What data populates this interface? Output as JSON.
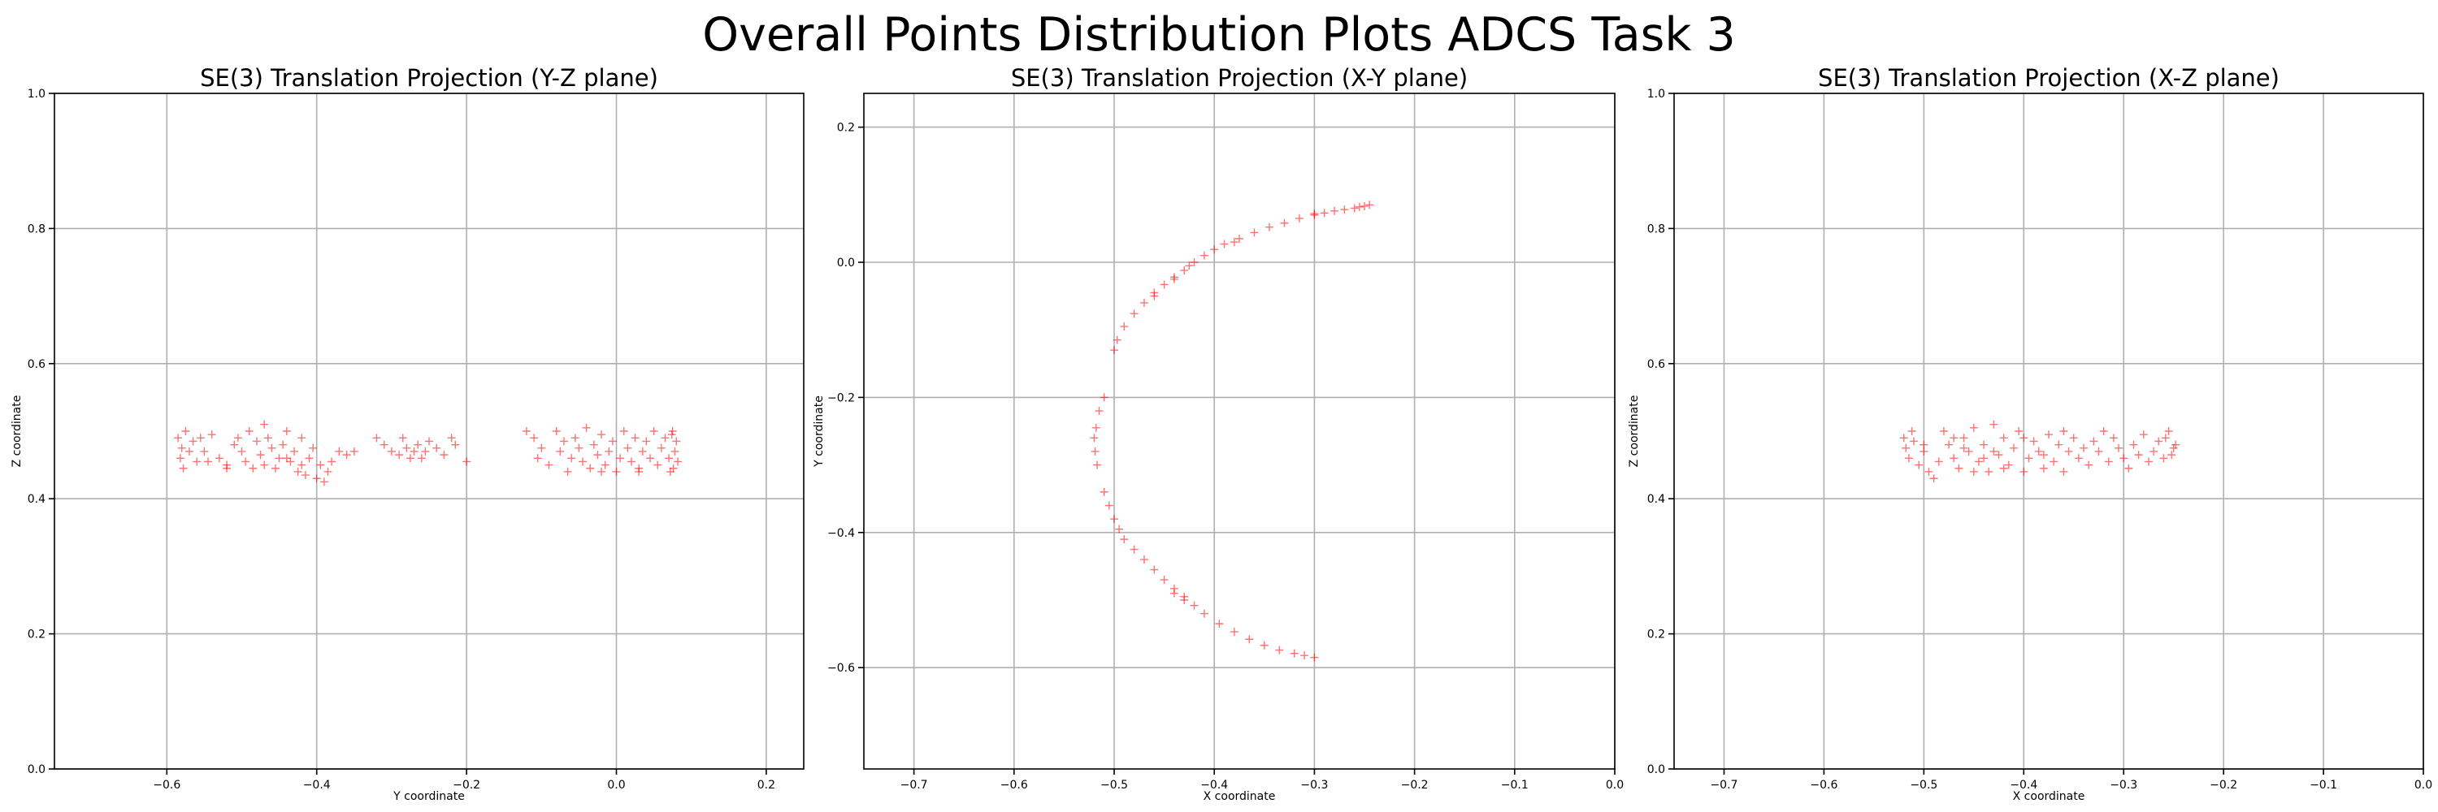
{
  "suptitle": "Overall Points Distribution Plots ADCS Task 3",
  "colors": {
    "marker": "#ff0000",
    "grid": "#b0b0b0"
  },
  "chart_data": [
    {
      "type": "scatter",
      "title": "SE(3) Translation Projection (Y-Z plane)",
      "xlabel": "Y coordinate",
      "ylabel": "Z coordinate",
      "xlim": [
        -0.75,
        0.25
      ],
      "ylim": [
        0.0,
        1.0
      ],
      "xticks": [
        -0.6,
        -0.4,
        -0.2,
        0.0,
        0.2
      ],
      "xtick_labels": [
        "−0.6",
        "−0.4",
        "−0.2",
        "0.0",
        "0.2"
      ],
      "yticks": [
        0.0,
        0.2,
        0.4,
        0.6,
        0.8,
        1.0
      ],
      "ytick_labels": [
        "0.0",
        "0.2",
        "0.4",
        "0.6",
        "0.8",
        "1.0"
      ],
      "grid": true,
      "marker": "+",
      "points": [
        [
          -0.585,
          0.49
        ],
        [
          -0.58,
          0.475
        ],
        [
          -0.582,
          0.46
        ],
        [
          -0.578,
          0.445
        ],
        [
          -0.575,
          0.5
        ],
        [
          -0.57,
          0.47
        ],
        [
          -0.565,
          0.485
        ],
        [
          -0.56,
          0.455
        ],
        [
          -0.555,
          0.49
        ],
        [
          -0.55,
          0.47
        ],
        [
          -0.545,
          0.455
        ],
        [
          -0.54,
          0.495
        ],
        [
          -0.53,
          0.46
        ],
        [
          -0.52,
          0.45
        ],
        [
          -0.51,
          0.48
        ],
        [
          -0.505,
          0.49
        ],
        [
          -0.5,
          0.47
        ],
        [
          -0.495,
          0.455
        ],
        [
          -0.49,
          0.5
        ],
        [
          -0.485,
          0.445
        ],
        [
          -0.48,
          0.485
        ],
        [
          -0.475,
          0.465
        ],
        [
          -0.47,
          0.51
        ],
        [
          -0.465,
          0.49
        ],
        [
          -0.46,
          0.475
        ],
        [
          -0.455,
          0.445
        ],
        [
          -0.45,
          0.46
        ],
        [
          -0.445,
          0.48
        ],
        [
          -0.44,
          0.5
        ],
        [
          -0.435,
          0.455
        ],
        [
          -0.43,
          0.47
        ],
        [
          -0.425,
          0.44
        ],
        [
          -0.42,
          0.49
        ],
        [
          -0.415,
          0.435
        ],
        [
          -0.41,
          0.46
        ],
        [
          -0.405,
          0.475
        ],
        [
          -0.4,
          0.43
        ],
        [
          -0.395,
          0.45
        ],
        [
          -0.39,
          0.425
        ],
        [
          -0.385,
          0.44
        ],
        [
          -0.38,
          0.455
        ],
        [
          -0.37,
          0.47
        ],
        [
          -0.36,
          0.465
        ],
        [
          -0.35,
          0.47
        ],
        [
          -0.32,
          0.49
        ],
        [
          -0.31,
          0.48
        ],
        [
          -0.3,
          0.47
        ],
        [
          -0.29,
          0.465
        ],
        [
          -0.285,
          0.49
        ],
        [
          -0.28,
          0.475
        ],
        [
          -0.275,
          0.46
        ],
        [
          -0.27,
          0.47
        ],
        [
          -0.265,
          0.48
        ],
        [
          -0.26,
          0.46
        ],
        [
          -0.255,
          0.47
        ],
        [
          -0.25,
          0.485
        ],
        [
          -0.24,
          0.475
        ],
        [
          -0.23,
          0.465
        ],
        [
          -0.22,
          0.49
        ],
        [
          -0.215,
          0.48
        ],
        [
          -0.2,
          0.455
        ],
        [
          -0.12,
          0.5
        ],
        [
          -0.11,
          0.49
        ],
        [
          -0.105,
          0.46
        ],
        [
          -0.1,
          0.475
        ],
        [
          -0.09,
          0.45
        ],
        [
          -0.08,
          0.5
        ],
        [
          -0.075,
          0.47
        ],
        [
          -0.07,
          0.485
        ],
        [
          -0.065,
          0.44
        ],
        [
          -0.06,
          0.46
        ],
        [
          -0.055,
          0.49
        ],
        [
          -0.05,
          0.475
        ],
        [
          -0.045,
          0.455
        ],
        [
          -0.04,
          0.505
        ],
        [
          -0.035,
          0.445
        ],
        [
          -0.03,
          0.48
        ],
        [
          -0.025,
          0.465
        ],
        [
          -0.02,
          0.495
        ],
        [
          -0.015,
          0.45
        ],
        [
          -0.01,
          0.47
        ],
        [
          -0.005,
          0.485
        ],
        [
          0.0,
          0.44
        ],
        [
          0.005,
          0.46
        ],
        [
          0.01,
          0.5
        ],
        [
          0.015,
          0.475
        ],
        [
          0.02,
          0.455
        ],
        [
          0.025,
          0.49
        ],
        [
          0.03,
          0.445
        ],
        [
          0.035,
          0.47
        ],
        [
          0.04,
          0.485
        ],
        [
          0.045,
          0.46
        ],
        [
          0.05,
          0.5
        ],
        [
          0.055,
          0.45
        ],
        [
          0.06,
          0.475
        ],
        [
          0.065,
          0.49
        ],
        [
          0.07,
          0.46
        ],
        [
          0.072,
          0.44
        ],
        [
          0.075,
          0.5
        ],
        [
          0.078,
          0.47
        ],
        [
          0.08,
          0.485
        ],
        [
          0.082,
          0.455
        ],
        [
          0.076,
          0.445
        ],
        [
          0.074,
          0.495
        ],
        [
          -0.52,
          0.445
        ],
        [
          -0.47,
          0.45
        ],
        [
          -0.44,
          0.46
        ],
        [
          -0.42,
          0.45
        ],
        [
          -0.02,
          0.44
        ],
        [
          0.03,
          0.44
        ]
      ]
    },
    {
      "type": "scatter",
      "title": "SE(3) Translation Projection (X-Y plane)",
      "xlabel": "X coordinate",
      "ylabel": "Y coordinate",
      "xlim": [
        -0.75,
        0.0
      ],
      "ylim": [
        -0.75,
        0.25
      ],
      "xticks": [
        -0.7,
        -0.6,
        -0.5,
        -0.4,
        -0.3,
        -0.2,
        -0.1,
        0.0
      ],
      "xtick_labels": [
        "−0.7",
        "−0.6",
        "−0.5",
        "−0.4",
        "−0.3",
        "−0.2",
        "−0.1",
        "0.0"
      ],
      "yticks": [
        -0.6,
        -0.4,
        -0.2,
        0.0,
        0.2
      ],
      "ytick_labels": [
        "−0.6",
        "−0.4",
        "−0.2",
        "0.0",
        "0.2"
      ],
      "grid": true,
      "marker": "+",
      "points": [
        [
          -0.245,
          0.085
        ],
        [
          -0.25,
          0.083
        ],
        [
          -0.255,
          0.082
        ],
        [
          -0.26,
          0.08
        ],
        [
          -0.27,
          0.078
        ],
        [
          -0.28,
          0.076
        ],
        [
          -0.29,
          0.073
        ],
        [
          -0.3,
          0.07
        ],
        [
          -0.315,
          0.065
        ],
        [
          -0.33,
          0.058
        ],
        [
          -0.345,
          0.052
        ],
        [
          -0.36,
          0.044
        ],
        [
          -0.375,
          0.035
        ],
        [
          -0.39,
          0.027
        ],
        [
          -0.4,
          0.019
        ],
        [
          -0.41,
          0.01
        ],
        [
          -0.42,
          0.0
        ],
        [
          -0.425,
          -0.005
        ],
        [
          -0.43,
          -0.012
        ],
        [
          -0.44,
          -0.022
        ],
        [
          -0.45,
          -0.033
        ],
        [
          -0.46,
          -0.045
        ],
        [
          -0.47,
          -0.06
        ],
        [
          -0.48,
          -0.076
        ],
        [
          -0.49,
          -0.095
        ],
        [
          -0.497,
          -0.115
        ],
        [
          -0.5,
          -0.13
        ],
        [
          -0.51,
          -0.2
        ],
        [
          -0.515,
          -0.22
        ],
        [
          -0.518,
          -0.245
        ],
        [
          -0.52,
          -0.26
        ],
        [
          -0.519,
          -0.28
        ],
        [
          -0.517,
          -0.3
        ],
        [
          -0.51,
          -0.34
        ],
        [
          -0.505,
          -0.36
        ],
        [
          -0.5,
          -0.38
        ],
        [
          -0.495,
          -0.395
        ],
        [
          -0.49,
          -0.41
        ],
        [
          -0.48,
          -0.425
        ],
        [
          -0.47,
          -0.44
        ],
        [
          -0.46,
          -0.455
        ],
        [
          -0.45,
          -0.47
        ],
        [
          -0.44,
          -0.483
        ],
        [
          -0.43,
          -0.495
        ],
        [
          -0.42,
          -0.508
        ],
        [
          -0.41,
          -0.52
        ],
        [
          -0.395,
          -0.535
        ],
        [
          -0.38,
          -0.547
        ],
        [
          -0.365,
          -0.558
        ],
        [
          -0.35,
          -0.567
        ],
        [
          -0.335,
          -0.574
        ],
        [
          -0.32,
          -0.579
        ],
        [
          -0.31,
          -0.582
        ],
        [
          -0.3,
          -0.585
        ],
        [
          -0.44,
          -0.49
        ],
        [
          -0.43,
          -0.5
        ],
        [
          -0.44,
          -0.025
        ],
        [
          -0.46,
          -0.05
        ],
        [
          -0.38,
          0.03
        ],
        [
          -0.3,
          0.072
        ]
      ]
    },
    {
      "type": "scatter",
      "title": "SE(3) Translation Projection (X-Z plane)",
      "xlabel": "X coordinate",
      "ylabel": "Z coordinate",
      "xlim": [
        -0.75,
        0.0
      ],
      "ylim": [
        0.0,
        1.0
      ],
      "xticks": [
        -0.7,
        -0.6,
        -0.5,
        -0.4,
        -0.3,
        -0.2,
        -0.1,
        0.0
      ],
      "xtick_labels": [
        "−0.7",
        "−0.6",
        "−0.5",
        "−0.4",
        "−0.3",
        "−0.2",
        "−0.1",
        "0.0"
      ],
      "yticks": [
        0.0,
        0.2,
        0.4,
        0.6,
        0.8,
        1.0
      ],
      "ytick_labels": [
        "0.0",
        "0.2",
        "0.4",
        "0.6",
        "0.8",
        "1.0"
      ],
      "grid": true,
      "marker": "+",
      "points": [
        [
          -0.52,
          0.49
        ],
        [
          -0.518,
          0.475
        ],
        [
          -0.515,
          0.46
        ],
        [
          -0.512,
          0.5
        ],
        [
          -0.51,
          0.485
        ],
        [
          -0.505,
          0.45
        ],
        [
          -0.5,
          0.47
        ],
        [
          -0.495,
          0.44
        ],
        [
          -0.49,
          0.43
        ],
        [
          -0.485,
          0.455
        ],
        [
          -0.48,
          0.5
        ],
        [
          -0.475,
          0.48
        ],
        [
          -0.47,
          0.46
        ],
        [
          -0.465,
          0.445
        ],
        [
          -0.46,
          0.49
        ],
        [
          -0.455,
          0.47
        ],
        [
          -0.45,
          0.505
        ],
        [
          -0.445,
          0.455
        ],
        [
          -0.44,
          0.48
        ],
        [
          -0.435,
          0.44
        ],
        [
          -0.43,
          0.51
        ],
        [
          -0.425,
          0.465
        ],
        [
          -0.42,
          0.49
        ],
        [
          -0.415,
          0.45
        ],
        [
          -0.41,
          0.475
        ],
        [
          -0.405,
          0.5
        ],
        [
          -0.4,
          0.44
        ],
        [
          -0.395,
          0.46
        ],
        [
          -0.39,
          0.485
        ],
        [
          -0.385,
          0.47
        ],
        [
          -0.38,
          0.445
        ],
        [
          -0.375,
          0.495
        ],
        [
          -0.37,
          0.455
        ],
        [
          -0.365,
          0.48
        ],
        [
          -0.36,
          0.44
        ],
        [
          -0.355,
          0.47
        ],
        [
          -0.35,
          0.49
        ],
        [
          -0.345,
          0.46
        ],
        [
          -0.34,
          0.475
        ],
        [
          -0.335,
          0.45
        ],
        [
          -0.33,
          0.485
        ],
        [
          -0.325,
          0.47
        ],
        [
          -0.32,
          0.5
        ],
        [
          -0.315,
          0.455
        ],
        [
          -0.31,
          0.49
        ],
        [
          -0.305,
          0.475
        ],
        [
          -0.3,
          0.46
        ],
        [
          -0.295,
          0.445
        ],
        [
          -0.29,
          0.48
        ],
        [
          -0.285,
          0.465
        ],
        [
          -0.28,
          0.495
        ],
        [
          -0.275,
          0.455
        ],
        [
          -0.27,
          0.47
        ],
        [
          -0.265,
          0.485
        ],
        [
          -0.26,
          0.46
        ],
        [
          -0.255,
          0.5
        ],
        [
          -0.25,
          0.475
        ],
        [
          -0.248,
          0.48
        ],
        [
          -0.252,
          0.465
        ],
        [
          -0.258,
          0.49
        ],
        [
          -0.46,
          0.475
        ],
        [
          -0.44,
          0.46
        ],
        [
          -0.42,
          0.445
        ],
        [
          -0.4,
          0.49
        ],
        [
          -0.38,
          0.465
        ],
        [
          -0.36,
          0.5
        ],
        [
          -0.5,
          0.48
        ],
        [
          -0.47,
          0.49
        ],
        [
          -0.45,
          0.44
        ],
        [
          -0.43,
          0.47
        ]
      ]
    }
  ]
}
